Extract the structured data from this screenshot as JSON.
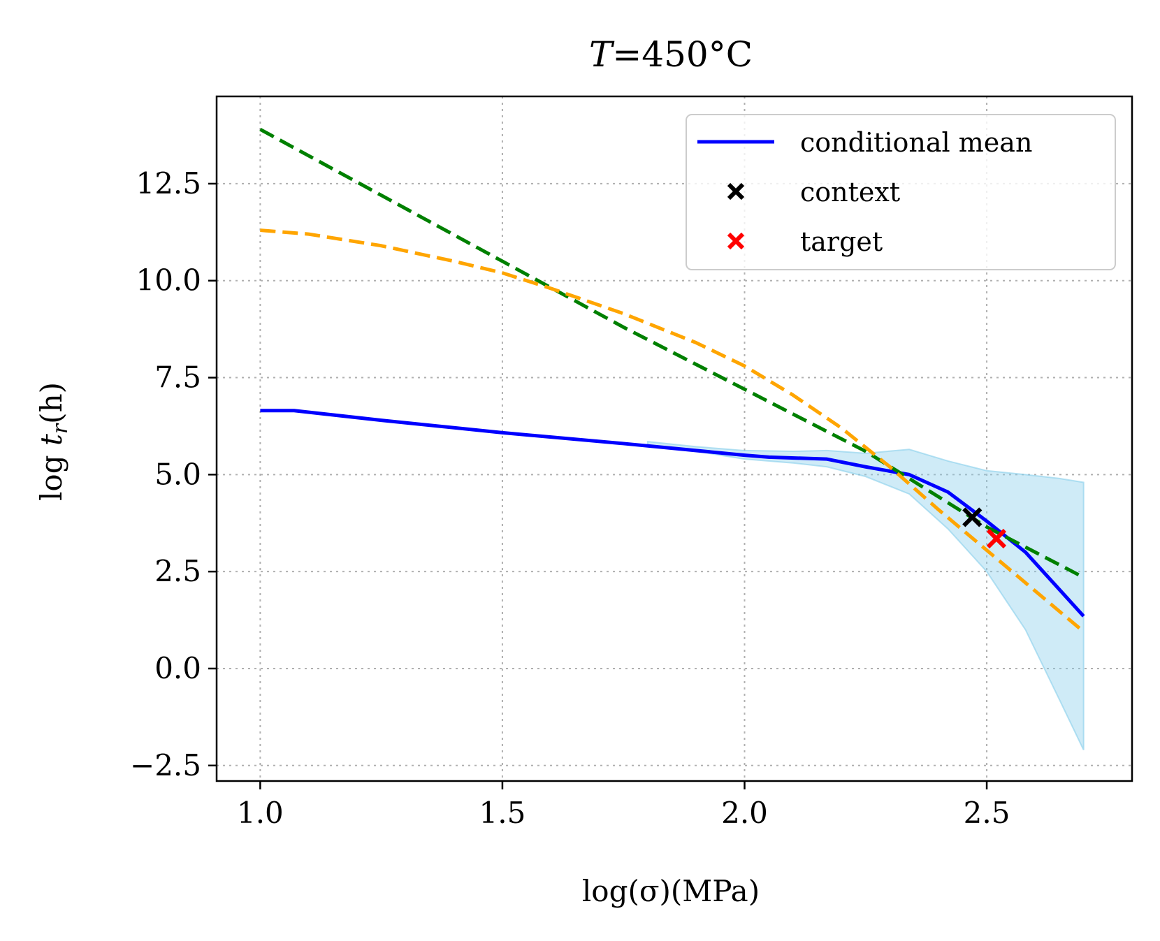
{
  "chart_data": {
    "type": "line",
    "title": "T=450°C",
    "title_var": "T",
    "title_rest": "=450°C",
    "xlabel": "log(σ)(MPa)",
    "ylabel": "log t_r(h)",
    "ylabel_parts": {
      "prefix": "log ",
      "var": "t",
      "sub": "r",
      "suffix": "(h)"
    },
    "xlim": [
      0.91,
      2.8
    ],
    "ylim": [
      -2.9,
      14.75
    ],
    "x_ticks": [
      1.0,
      1.5,
      2.0,
      2.5
    ],
    "x_tick_labels": [
      "1.0",
      "1.5",
      "2.0",
      "2.5"
    ],
    "y_ticks": [
      -2.5,
      0.0,
      2.5,
      5.0,
      7.5,
      10.0,
      12.5
    ],
    "y_tick_labels": [
      "−2.5",
      "0.0",
      "2.5",
      "5.0",
      "7.5",
      "10.0",
      "12.5"
    ],
    "grid": true,
    "legend_position": "top-right",
    "legend": [
      {
        "label": "conditional mean",
        "kind": "line",
        "color": "#0000ff"
      },
      {
        "label": "context",
        "kind": "marker",
        "color": "#000000"
      },
      {
        "label": "target",
        "kind": "marker",
        "color": "#ff0000"
      }
    ],
    "series": [
      {
        "name": "conditional mean",
        "color": "#0000ff",
        "style": "solid",
        "x": [
          1.0,
          1.07,
          1.25,
          1.5,
          1.75,
          2.0,
          2.05,
          2.17,
          2.25,
          2.34,
          2.42,
          2.5,
          2.58,
          2.7
        ],
        "y": [
          6.65,
          6.65,
          6.4,
          6.08,
          5.8,
          5.5,
          5.45,
          5.4,
          5.2,
          5.0,
          4.55,
          3.8,
          3.0,
          1.35
        ]
      },
      {
        "name": "dashed-green",
        "color": "#008000",
        "style": "dashed",
        "x": [
          1.0,
          1.25,
          1.5,
          1.75,
          2.0,
          2.25,
          2.5,
          2.7
        ],
        "y": [
          13.9,
          12.2,
          10.5,
          8.8,
          7.2,
          5.6,
          3.65,
          2.35
        ]
      },
      {
        "name": "dashed-orange",
        "color": "#ffa500",
        "style": "dashed",
        "x": [
          1.0,
          1.1,
          1.25,
          1.4,
          1.5,
          1.6,
          1.75,
          1.9,
          2.0,
          2.1,
          2.2,
          2.3,
          2.4,
          2.5,
          2.6,
          2.7
        ],
        "y": [
          11.3,
          11.2,
          10.9,
          10.5,
          10.2,
          9.8,
          9.15,
          8.4,
          7.8,
          7.05,
          6.2,
          5.2,
          4.1,
          3.05,
          2.0,
          0.95
        ]
      }
    ],
    "band": {
      "name": "uncertainty band",
      "color": "#87ceeb",
      "x": [
        1.8,
        1.9,
        2.0,
        2.1,
        2.17,
        2.25,
        2.34,
        2.42,
        2.5,
        2.58,
        2.65,
        2.7
      ],
      "upper": [
        5.85,
        5.72,
        5.62,
        5.6,
        5.62,
        5.55,
        5.65,
        5.35,
        5.1,
        5.0,
        4.9,
        4.8
      ],
      "lower": [
        5.75,
        5.6,
        5.4,
        5.3,
        5.2,
        4.95,
        4.5,
        3.6,
        2.5,
        1.0,
        -0.8,
        -2.1
      ]
    },
    "points": [
      {
        "name": "context",
        "x": 2.47,
        "y": 3.9,
        "color": "#000000"
      },
      {
        "name": "target",
        "x": 2.52,
        "y": 3.35,
        "color": "#ff0000"
      }
    ]
  }
}
